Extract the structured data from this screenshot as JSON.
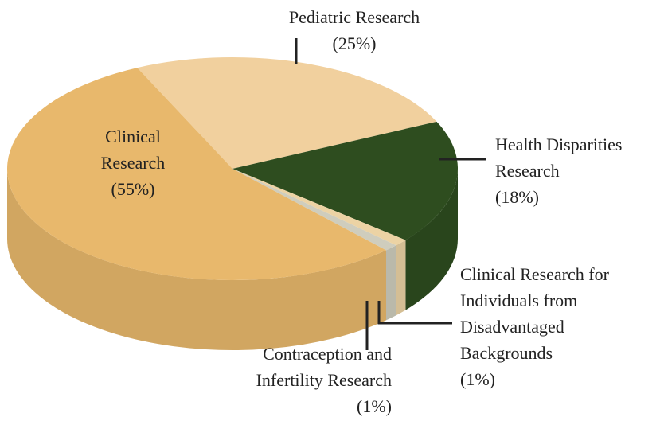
{
  "chart_data": {
    "type": "pie3d",
    "categories": [
      "Pediatric Research",
      "Health Disparities Research",
      "Clinical Research for Individuals from Disadvantaged Backgrounds",
      "Contraception and Infertility Research",
      "Clinical Research"
    ],
    "values": [
      25,
      18,
      1,
      1,
      55
    ],
    "value_labels": [
      "(25%)",
      "(18%)",
      "(1%)",
      "(1%)",
      "(55%)"
    ],
    "colors": [
      "#f1d09e",
      "#2e4d1f",
      "#ecd3a4",
      "#cfcdbd",
      "#e8b86c"
    ]
  }
}
